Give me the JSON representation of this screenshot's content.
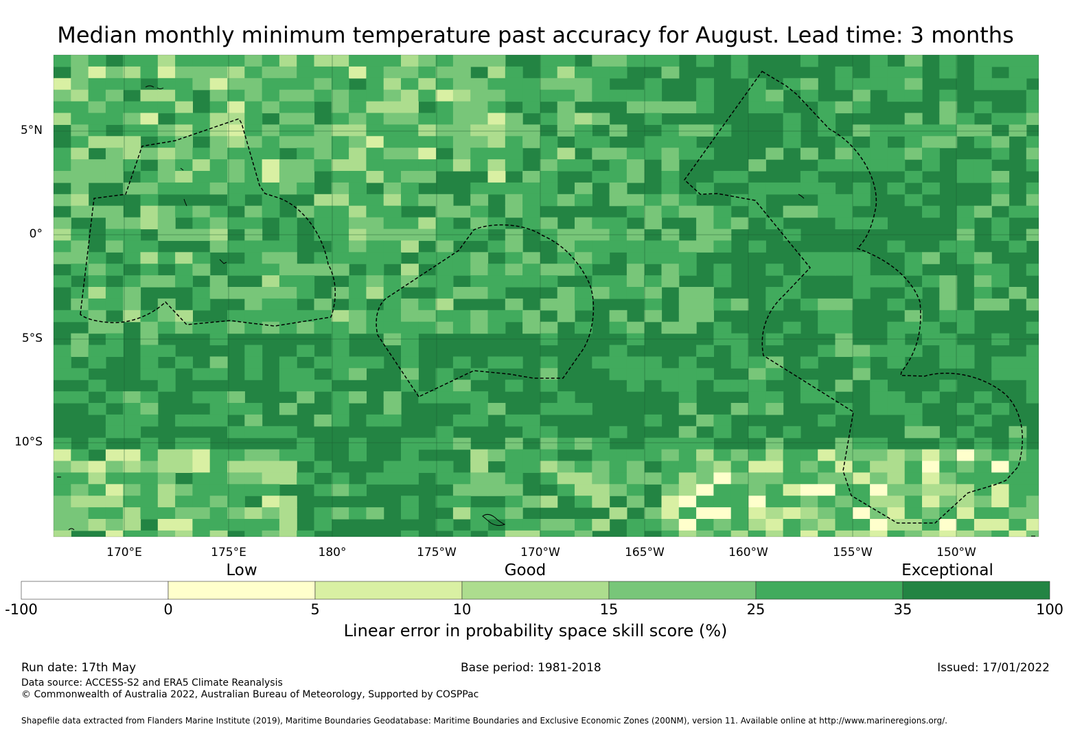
{
  "title": "Median monthly minimum temperature past accuracy for August. Lead time: 3 months",
  "map": {
    "lat_labels": [
      "5°N",
      "0°",
      "5°S",
      "10°S"
    ],
    "lon_labels": [
      "170°E",
      "175°E",
      "180°",
      "175°W",
      "170°W",
      "165°W",
      "160°W",
      "155°W",
      "150°W"
    ]
  },
  "colorbar": {
    "category_labels": [
      "Low",
      "Good",
      "Exceptional"
    ],
    "ticks": [
      "-100",
      "0",
      "5",
      "10",
      "15",
      "25",
      "35",
      "100"
    ],
    "colors": [
      "#ffffff",
      "#ffffcc",
      "#d9f0a3",
      "#addd8e",
      "#78c679",
      "#41ab5d",
      "#238443"
    ],
    "title": "Linear error in probability space skill score (%)"
  },
  "footer": {
    "run_date": "Run date: 17th May",
    "base_period": "Base period: 1981-2018",
    "issued": "Issued: 17/01/2022",
    "data_source": "Data source: ACCESS-S2 and ERA5 Climate Reanalysis",
    "copyright": "© Commonwealth of Australia 2022, Australian Bureau of Meteorology, Supported by COSPPac",
    "shapefile": "Shapefile data extracted from Flanders Marine Institute (2019), Maritime Boundaries Geodatabase: Maritime Boundaries and Exclusive Economic Zones (200NM), version 11. Available online at http://www.marineregions.org/."
  }
}
